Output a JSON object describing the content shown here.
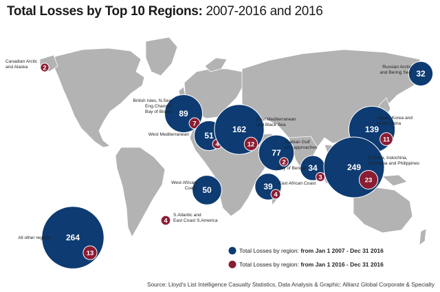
{
  "title": {
    "bold": "Total Losses by Top 10 Regions:",
    "normal": " 2007-2016 and 2016"
  },
  "colors": {
    "total_2007_2016": "#0d3b72",
    "total_2016": "#8a1c33",
    "land": "#b3b3b3",
    "sea": "#ffffff"
  },
  "chart_data": {
    "type": "bubble-map",
    "series": [
      {
        "name": "Total Losses by region: from Jan 1 2007 - Dec 31 2016"
      },
      {
        "name": "Total Losses by region: from Jan 1 2016 - Dec 31 2016"
      }
    ],
    "regions": [
      {
        "id": "canadian-arctic",
        "label": [
          "Canadian Arctic",
          "and Alaska"
        ],
        "total": null,
        "y2016": 2
      },
      {
        "id": "russian-arctic",
        "label": [
          "Russian Arctic",
          "and Bering Sea"
        ],
        "total": 32,
        "y2016": null
      },
      {
        "id": "british-isles",
        "label": [
          "British Isles, N.Sea,",
          "Eng.Channel,",
          "Bay of Biscay"
        ],
        "total": 89,
        "y2016": 7
      },
      {
        "id": "west-med",
        "label": [
          "West Mediterranean"
        ],
        "total": 51,
        "y2016": 4
      },
      {
        "id": "east-med",
        "label": [
          "East Mediterranean",
          "and Black Sea"
        ],
        "total": 162,
        "y2016": 12
      },
      {
        "id": "japan-korea",
        "label": [
          "Japan, Korea and",
          "North China"
        ],
        "total": 139,
        "y2016": 11
      },
      {
        "id": "arabian-gulf",
        "label": [
          "Arabian Gulf",
          "and approaches"
        ],
        "total": 77,
        "y2016": 2
      },
      {
        "id": "bay-of-bengal",
        "label": [
          "Bay of Bengal"
        ],
        "total": 34,
        "y2016": 3
      },
      {
        "id": "s-china",
        "label": [
          "S.China, Indochina,",
          "Indonesia and Philippines"
        ],
        "total": 249,
        "y2016": 23
      },
      {
        "id": "west-african",
        "label": [
          "West African",
          "Coast"
        ],
        "total": 50,
        "y2016": null
      },
      {
        "id": "east-african",
        "label": [
          "East African Coast"
        ],
        "total": 39,
        "y2016": 4
      },
      {
        "id": "s-atlantic",
        "label": [
          "S.Atlantic and",
          "East Coast S.America"
        ],
        "total": null,
        "y2016": 4
      },
      {
        "id": "other",
        "label": [
          "All other regions"
        ],
        "total": 264,
        "y2016": 13
      }
    ]
  },
  "legend": {
    "total_prefix": "Total Losses by region: ",
    "total_bold": "from Jan 1 2007 - Dec 31 2016",
    "y2016_prefix": "Total Losses by region: ",
    "y2016_bold": "from Jan 1 2016 - Dec 31 2016"
  },
  "source": "Source: Lloyd's List Intelligence Casualty Statistics,  Data Analysis & Graphic: Allianz Global Corporate & Specialty"
}
